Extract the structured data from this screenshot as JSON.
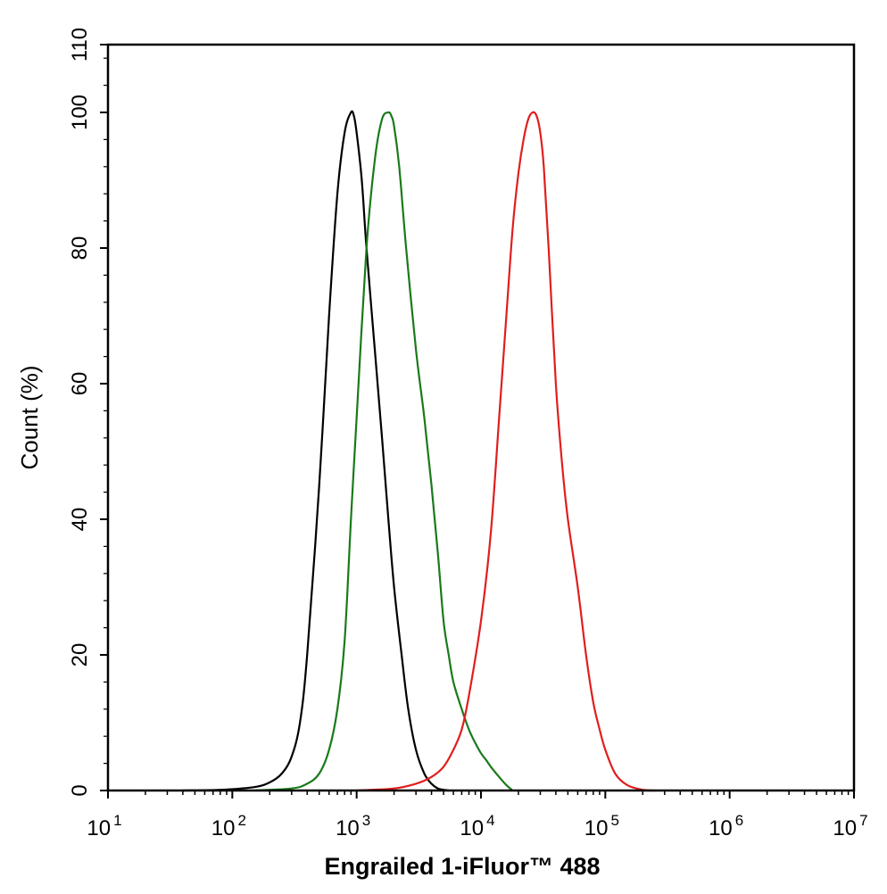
{
  "chart_data": {
    "type": "line",
    "xlabel": "Engrailed 1-iFluor™ 488",
    "ylabel": "Count  (%)",
    "x_scale": "log",
    "xlim": [
      10,
      10000000
    ],
    "ylim": [
      0,
      110
    ],
    "grid": false,
    "x_ticks": [
      {
        "value": 10,
        "base": "10",
        "exp": "1"
      },
      {
        "value": 100,
        "base": "10",
        "exp": "2"
      },
      {
        "value": 1000,
        "base": "10",
        "exp": "3"
      },
      {
        "value": 10000,
        "base": "10",
        "exp": "4"
      },
      {
        "value": 100000,
        "base": "10",
        "exp": "5"
      },
      {
        "value": 1000000,
        "base": "10",
        "exp": "6"
      },
      {
        "value": 10000000,
        "base": "10",
        "exp": "7"
      }
    ],
    "y_ticks": [
      "0",
      "20",
      "40",
      "60",
      "80",
      "100",
      "110"
    ],
    "series": [
      {
        "color": "#000000",
        "x": [
          40,
          80,
          150,
          200,
          250,
          300,
          350,
          400,
          500,
          600,
          700,
          800,
          900,
          950,
          1000,
          1100,
          1200,
          1400,
          1600,
          1800,
          2000,
          2300,
          2600,
          3000,
          3500,
          4000,
          4500,
          5000,
          5500
        ],
        "y": [
          0,
          0.1,
          0.5,
          1.2,
          2.5,
          5,
          10,
          20,
          45,
          70,
          88,
          97,
          100,
          99.5,
          97,
          90,
          80,
          65,
          52,
          40,
          30,
          20,
          12,
          6,
          2.5,
          1,
          0.3,
          0.1,
          0
        ]
      },
      {
        "color": "#1a7a1a",
        "x": [
          150,
          300,
          400,
          500,
          600,
          700,
          800,
          900,
          1000,
          1200,
          1400,
          1600,
          1800,
          1900,
          2000,
          2200,
          2500,
          3000,
          3500,
          4000,
          4500,
          5000,
          5500,
          6000,
          7000,
          8000,
          9000,
          10000,
          11000,
          12000,
          14000,
          16000,
          18000
        ],
        "y": [
          0,
          0.3,
          1,
          2.5,
          6,
          12,
          22,
          40,
          55,
          80,
          93,
          99,
          100,
          99.5,
          98,
          92,
          80,
          65,
          55,
          45,
          35,
          25,
          20,
          16,
          12,
          9,
          7,
          5.5,
          4.5,
          3.5,
          2,
          0.8,
          0
        ]
      },
      {
        "color": "#e01e1e",
        "x": [
          1000,
          2000,
          3000,
          4000,
          5000,
          6000,
          7000,
          8000,
          10000,
          12000,
          14000,
          16000,
          18000,
          20000,
          22000,
          24000,
          26000,
          28000,
          30000,
          32000,
          35000,
          40000,
          45000,
          50000,
          60000,
          70000,
          80000,
          90000,
          100000,
          120000,
          150000,
          200000,
          250000
        ],
        "y": [
          0,
          0.3,
          1,
          2,
          3.5,
          6,
          9,
          14,
          25,
          38,
          55,
          70,
          83,
          91,
          96,
          99,
          100,
          99.5,
          97,
          92,
          80,
          60,
          48,
          40,
          30,
          20,
          13,
          9,
          6,
          2.5,
          0.8,
          0.1,
          0
        ]
      }
    ]
  }
}
